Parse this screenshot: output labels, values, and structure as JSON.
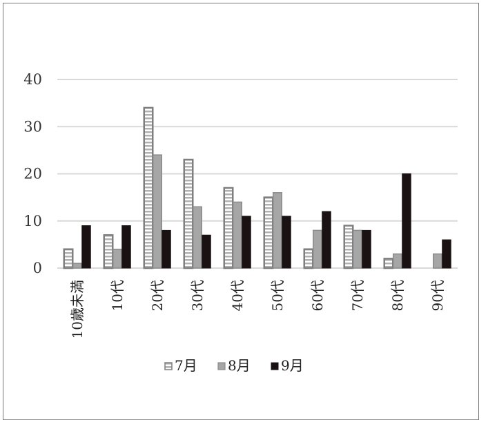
{
  "chart_data": {
    "type": "bar",
    "categories": [
      "10歳未満",
      "10代",
      "20代",
      "30代",
      "40代",
      "50代",
      "60代",
      "70代",
      "80代",
      "90代"
    ],
    "series": [
      {
        "name": "7月",
        "values": [
          4,
          7,
          34,
          23,
          17,
          15,
          4,
          9,
          2,
          0
        ],
        "color": "#8c8c8c",
        "style": "striped"
      },
      {
        "name": "8月",
        "values": [
          1,
          4,
          24,
          13,
          14,
          16,
          8,
          8,
          3,
          3
        ],
        "color": "#a6a6a6",
        "style": "solid-outlined"
      },
      {
        "name": "9月",
        "values": [
          9,
          9,
          8,
          7,
          11,
          11,
          12,
          8,
          20,
          6
        ],
        "color": "#1a1212",
        "style": "solid"
      }
    ],
    "ylim": [
      0,
      40
    ],
    "yticks": [
      0,
      10,
      20,
      30,
      40
    ],
    "grid": true,
    "legend_position": "bottom"
  }
}
